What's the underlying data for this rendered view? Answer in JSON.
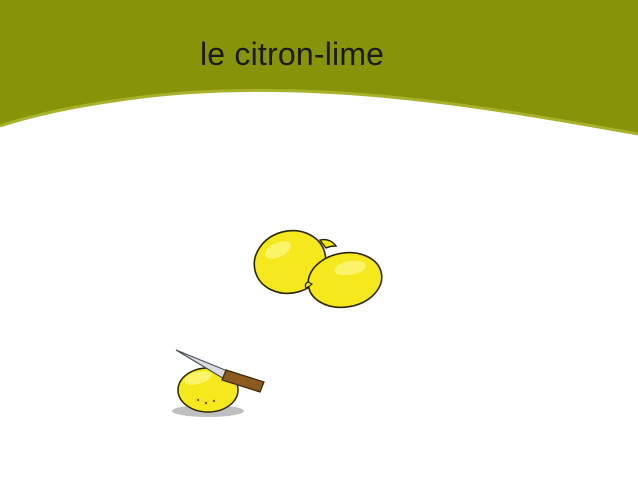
{
  "slide": {
    "title": "le citron-lime"
  },
  "colors": {
    "banner": "#879409",
    "banner_edge": "#a7b12a",
    "lemon_fill": "#f5e81c",
    "lemon_highlight": "#fbf46a",
    "lemon_outline": "#2b2600",
    "knife_handle": "#8a5a1e",
    "knife_blade": "#d9dde3"
  },
  "icons": [
    "lemons-icon",
    "lemon-with-knife-icon"
  ]
}
